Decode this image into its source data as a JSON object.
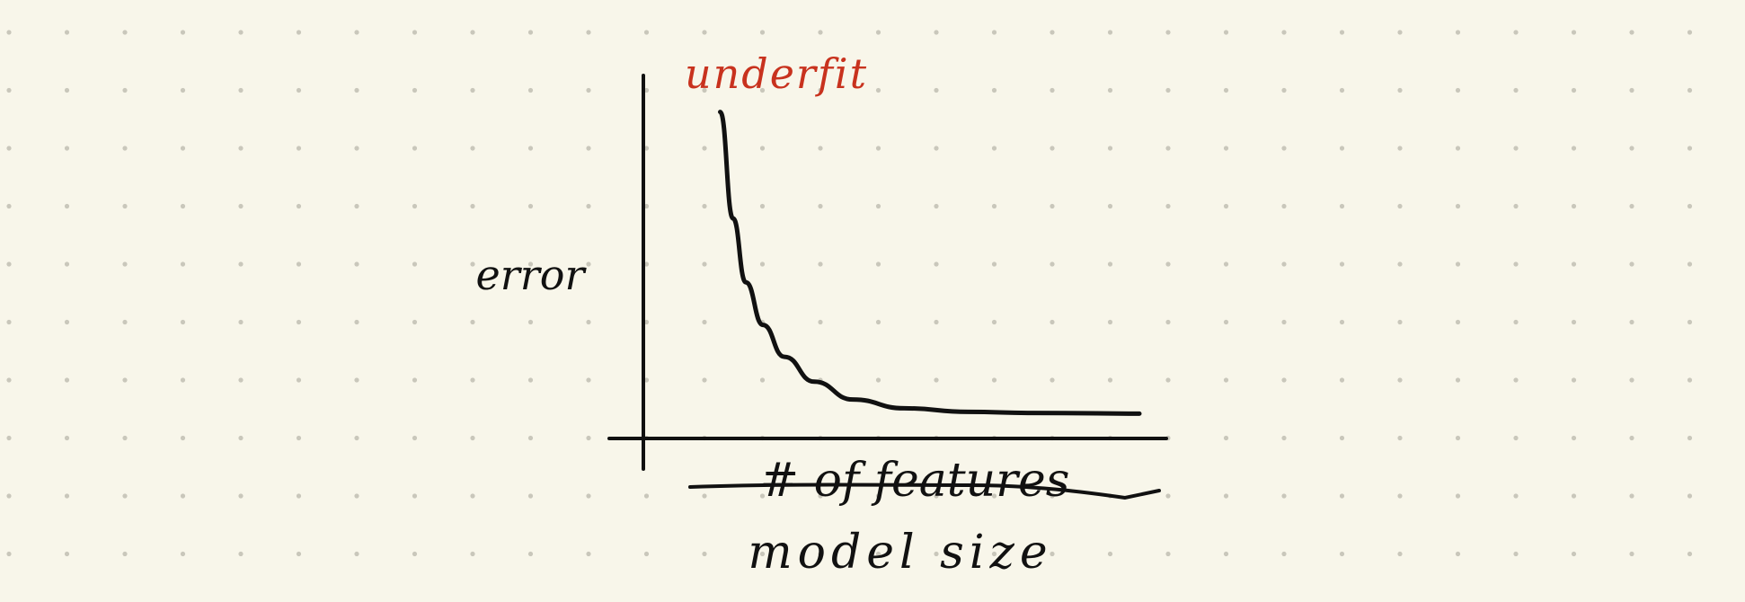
{
  "page": {
    "background": "#f8f6ea",
    "dot_color": "#c9c7bb",
    "ink_color": "#111111",
    "accent_color": "#c8321e"
  },
  "chart_data": {
    "type": "line",
    "title": "underfit",
    "ylabel": "error",
    "xlabel": "model size",
    "xlabel_struck": "# of features",
    "grid": false,
    "series": [
      {
        "x": [
          0.02,
          0.05,
          0.08,
          0.12,
          0.17,
          0.24,
          0.33,
          0.45,
          0.6,
          0.75,
          0.9,
          1.0
        ],
        "y": [
          0.92,
          0.62,
          0.44,
          0.32,
          0.23,
          0.16,
          0.11,
          0.085,
          0.075,
          0.072,
          0.071,
          0.07
        ]
      }
    ]
  }
}
